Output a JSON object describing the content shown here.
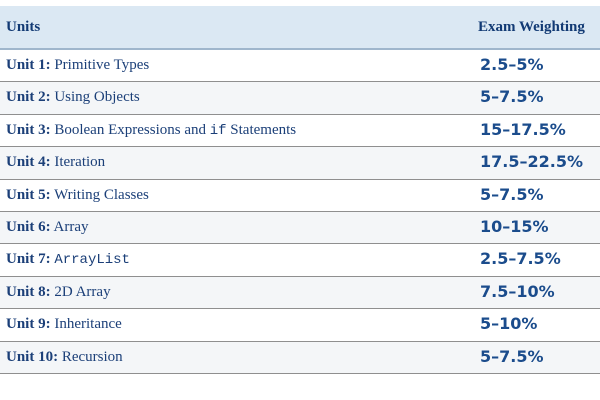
{
  "header": {
    "units": "Units",
    "weighting": "Exam Weighting"
  },
  "rows": [
    {
      "num": "Unit 1:",
      "pre": " Primitive Types",
      "code": "",
      "post": "",
      "weight": "2.5–5%"
    },
    {
      "num": "Unit 2:",
      "pre": " Using Objects",
      "code": "",
      "post": "",
      "weight": "5–7.5%"
    },
    {
      "num": "Unit 3:",
      "pre": " Boolean Expressions and ",
      "code": "if",
      "post": " Statements",
      "weight": "15–17.5%"
    },
    {
      "num": "Unit 4:",
      "pre": " Iteration",
      "code": "",
      "post": "",
      "weight": "17.5–22.5%"
    },
    {
      "num": "Unit 5:",
      "pre": " Writing Classes",
      "code": "",
      "post": "",
      "weight": "5–7.5%"
    },
    {
      "num": "Unit 6:",
      "pre": " Array",
      "code": "",
      "post": "",
      "weight": "10–15%"
    },
    {
      "num": "Unit 7:",
      "pre": " ",
      "code": "ArrayList",
      "post": "",
      "weight": "2.5–7.5%"
    },
    {
      "num": "Unit 8:",
      "pre": " 2D Array",
      "code": "",
      "post": "",
      "weight": "7.5–10%"
    },
    {
      "num": "Unit 9:",
      "pre": " Inheritance",
      "code": "",
      "post": "",
      "weight": "5–10%"
    },
    {
      "num": "Unit 10:",
      "pre": " Recursion",
      "code": "",
      "post": "",
      "weight": "5–7.5%"
    }
  ]
}
